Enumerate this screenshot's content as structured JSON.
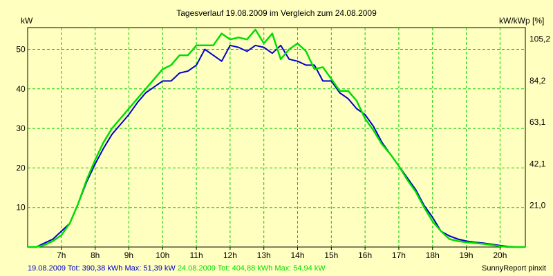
{
  "chart_data": {
    "type": "line",
    "title": "Tagesverlauf 19.08.2009 im Vergleich zum 24.08.2009",
    "ylabel_left": "kW",
    "ylabel_right": "kW/kWp [%]",
    "x_unit": "hour",
    "xlim": [
      6.0,
      20.75
    ],
    "ylim": [
      0,
      55.5
    ],
    "x_ticks": [
      7,
      8,
      9,
      10,
      11,
      12,
      13,
      14,
      15,
      16,
      17,
      18,
      19,
      20
    ],
    "x_tick_labels": [
      "7h",
      "8h",
      "9h",
      "10h",
      "11h",
      "12h",
      "13h",
      "14h",
      "15h",
      "16h",
      "17h",
      "18h",
      "19h",
      "20h"
    ],
    "y_ticks_left": [
      10,
      20,
      30,
      40,
      50
    ],
    "y_tick_labels_left": [
      "10",
      "20",
      "30",
      "40",
      "50"
    ],
    "y_ticks_right": [
      10.525,
      21.05,
      31.575,
      42.1,
      52.625
    ],
    "y_tick_labels_right": [
      "21,0",
      "42,1",
      "63,1",
      "84,2",
      "105,2"
    ],
    "grid": true,
    "series": [
      {
        "name": "19.08.2009",
        "color": "#0000cc",
        "x": [
          6.0,
          6.25,
          6.5,
          6.75,
          7.0,
          7.25,
          7.5,
          7.75,
          8.0,
          8.25,
          8.5,
          8.75,
          9.0,
          9.25,
          9.5,
          9.75,
          10.0,
          10.25,
          10.5,
          10.75,
          11.0,
          11.25,
          11.5,
          11.75,
          12.0,
          12.25,
          12.5,
          12.75,
          13.0,
          13.25,
          13.5,
          13.75,
          14.0,
          14.25,
          14.5,
          14.75,
          15.0,
          15.25,
          15.5,
          15.75,
          16.0,
          16.25,
          16.5,
          16.75,
          17.0,
          17.25,
          17.5,
          17.75,
          18.0,
          18.25,
          18.5,
          18.75,
          19.0,
          19.25,
          19.5,
          19.75,
          20.0,
          20.25,
          20.5,
          20.75
        ],
        "values": [
          0,
          0,
          1.0,
          2.0,
          4.0,
          6.0,
          11.0,
          16.5,
          21.0,
          25.0,
          28.5,
          31.0,
          33.5,
          36.5,
          39.0,
          40.5,
          42.0,
          42.0,
          44.0,
          44.5,
          46.0,
          50.0,
          48.5,
          47.0,
          51.0,
          50.5,
          49.5,
          51.0,
          50.5,
          49.0,
          51.0,
          47.5,
          47.0,
          46.0,
          46.0,
          42.0,
          42.0,
          39.0,
          37.5,
          35.0,
          33.5,
          30.5,
          26.5,
          23.5,
          20.5,
          17.5,
          14.5,
          10.5,
          7.5,
          4.0,
          2.8,
          2.0,
          1.5,
          1.2,
          1.0,
          0.7,
          0.4,
          0.1,
          0,
          0
        ]
      },
      {
        "name": "24.08.2009",
        "color": "#00dd00",
        "x": [
          6.0,
          6.25,
          6.5,
          6.75,
          7.0,
          7.25,
          7.5,
          7.75,
          8.0,
          8.25,
          8.5,
          8.75,
          9.0,
          9.25,
          9.5,
          9.75,
          10.0,
          10.25,
          10.5,
          10.75,
          11.0,
          11.25,
          11.5,
          11.75,
          12.0,
          12.25,
          12.5,
          12.75,
          13.0,
          13.25,
          13.5,
          13.75,
          14.0,
          14.25,
          14.5,
          14.75,
          15.0,
          15.25,
          15.5,
          15.75,
          16.0,
          16.25,
          16.5,
          16.75,
          17.0,
          17.25,
          17.5,
          17.75,
          18.0,
          18.25,
          18.5,
          18.75,
          19.0,
          19.25,
          19.5,
          19.75,
          20.0,
          20.25,
          20.5,
          20.75
        ],
        "values": [
          0,
          0,
          0.5,
          1.5,
          3.0,
          6.0,
          11.0,
          17.0,
          22.0,
          26.5,
          30.0,
          32.5,
          35.0,
          37.5,
          40.0,
          42.5,
          45.0,
          46.0,
          48.5,
          48.5,
          51.0,
          51.0,
          51.0,
          54.0,
          52.5,
          53.0,
          52.5,
          55.0,
          51.5,
          54.0,
          47.5,
          50.0,
          51.5,
          49.5,
          45.0,
          45.5,
          42.5,
          39.5,
          39.5,
          37.0,
          32.5,
          29.5,
          26.0,
          23.5,
          20.5,
          17.0,
          14.0,
          10.0,
          6.5,
          4.0,
          2.0,
          1.5,
          1.2,
          1.0,
          0.8,
          0.5,
          0.2,
          0,
          0,
          0
        ]
      }
    ]
  },
  "footer": {
    "series1": "19.08.2009 Tot: 390,38 kWh Max: 51,39 kW",
    "series2": "24.08.2009 Tot: 404,88 kWh Max: 54,94 kW",
    "credit": "SunnyReport pinxit"
  },
  "colors": {
    "background": "#ffffc0",
    "grid": "#00cc00",
    "series1": "#0000cc",
    "series2": "#00dd00"
  }
}
